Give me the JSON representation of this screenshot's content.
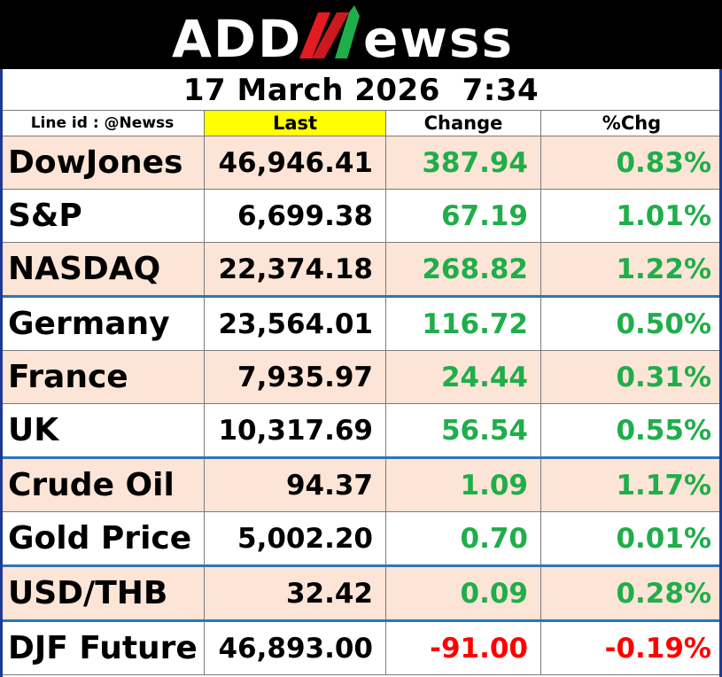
{
  "brand": {
    "logo_text": "ADDNewss",
    "logo_left": "ADD",
    "logo_n": "N",
    "logo_right": "ewss",
    "colors": {
      "background": "#000000",
      "text": "#ffffff",
      "n_red": "#e31b23",
      "n_green": "#1fae4a"
    }
  },
  "header": {
    "date": "17 March 2026",
    "time": "7:34"
  },
  "table": {
    "columns": {
      "name": "Line id : @Newss",
      "last": "Last",
      "change": "Change",
      "pct": "%Chg"
    },
    "rows": [
      {
        "name": "DowJones",
        "last": "46,946.41",
        "change": "387.94",
        "pct": "0.83%",
        "direction": "up",
        "shade": true
      },
      {
        "name": "S&P",
        "last": "6,699.38",
        "change": "67.19",
        "pct": "1.01%",
        "direction": "up",
        "shade": false
      },
      {
        "name": "NASDAQ",
        "last": "22,374.18",
        "change": "268.82",
        "pct": "1.22%",
        "direction": "up",
        "shade": true
      },
      {
        "name": "Germany",
        "last": "23,564.01",
        "change": "116.72",
        "pct": "0.50%",
        "direction": "up",
        "shade": false
      },
      {
        "name": "France",
        "last": "7,935.97",
        "change": "24.44",
        "pct": "0.31%",
        "direction": "up",
        "shade": true
      },
      {
        "name": "UK",
        "last": "10,317.69",
        "change": "56.54",
        "pct": "0.55%",
        "direction": "up",
        "shade": false
      },
      {
        "name": "Crude Oil",
        "last": "94.37",
        "change": "1.09",
        "pct": "1.17%",
        "direction": "up",
        "shade": true
      },
      {
        "name": "Gold Price",
        "last": "5,002.20",
        "change": "0.70",
        "pct": "0.01%",
        "direction": "up",
        "shade": false
      },
      {
        "name": "USD/THB",
        "last": "32.42",
        "change": "0.09",
        "pct": "0.28%",
        "direction": "up",
        "shade": true
      },
      {
        "name": "DJF Future",
        "last": "46,893.00",
        "change": "-91.00",
        "pct": "-0.19%",
        "direction": "down",
        "shade": false
      }
    ],
    "colors": {
      "up": "#1fae4a",
      "down": "#ff0000",
      "shade": "#fce4d6",
      "last_header": "#ffff00",
      "group_divider": "#2e75b6"
    }
  }
}
